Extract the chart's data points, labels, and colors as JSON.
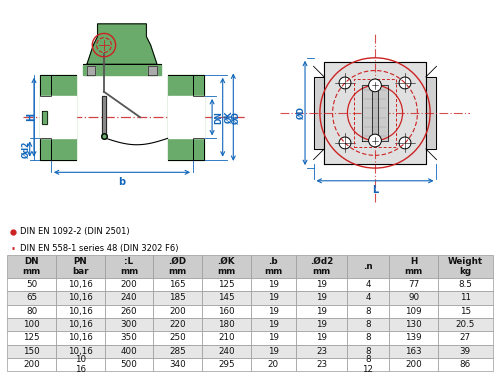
{
  "legend1_text": "DIN EN 1092-2 (DIN 2501)",
  "legend2_text": "DIN EN 558-1 series 48 (DIN 3202 F6)",
  "table_headers": [
    "DN\nmm",
    "PN\nbar",
    ":L\nmm",
    ".ØD\nmm",
    ".ØK\nmm",
    ".b\nmm",
    ".Ød2\nmm",
    ".n",
    "H\nmm",
    "Weight\nkg"
  ],
  "table_data": [
    [
      "50",
      "10,16",
      "200",
      "165",
      "125",
      "19",
      "19",
      "4",
      "77",
      "8.5"
    ],
    [
      "65",
      "10,16",
      "240",
      "185",
      "145",
      "19",
      "19",
      "4",
      "90",
      "11"
    ],
    [
      "80",
      "10,16",
      "260",
      "200",
      "160",
      "19",
      "19",
      "8",
      "109",
      "15"
    ],
    [
      "100",
      "10,16",
      "300",
      "220",
      "180",
      "19",
      "19",
      "8",
      "130",
      "20.5"
    ],
    [
      "125",
      "10,16",
      "350",
      "250",
      "210",
      "19",
      "19",
      "8",
      "139",
      "27"
    ],
    [
      "150",
      "10,16",
      "400",
      "285",
      "240",
      "19",
      "23",
      "8",
      "163",
      "39"
    ],
    [
      "200",
      "10\n16",
      "500",
      "340",
      "295",
      "20",
      "23",
      "8\n12",
      "200",
      "86"
    ]
  ],
  "row_bg_even": "#ffffff",
  "row_bg_odd": "#e6e6e6",
  "header_bg": "#cccccc",
  "border_color": "#999999",
  "green": "#6aaa6a",
  "green_dark": "#4a8a4a",
  "red": "#cc2222",
  "blue": "#1166bb",
  "gray_light": "#dddddd",
  "gray_med": "#aaaaaa",
  "bg_white": "#ffffff"
}
